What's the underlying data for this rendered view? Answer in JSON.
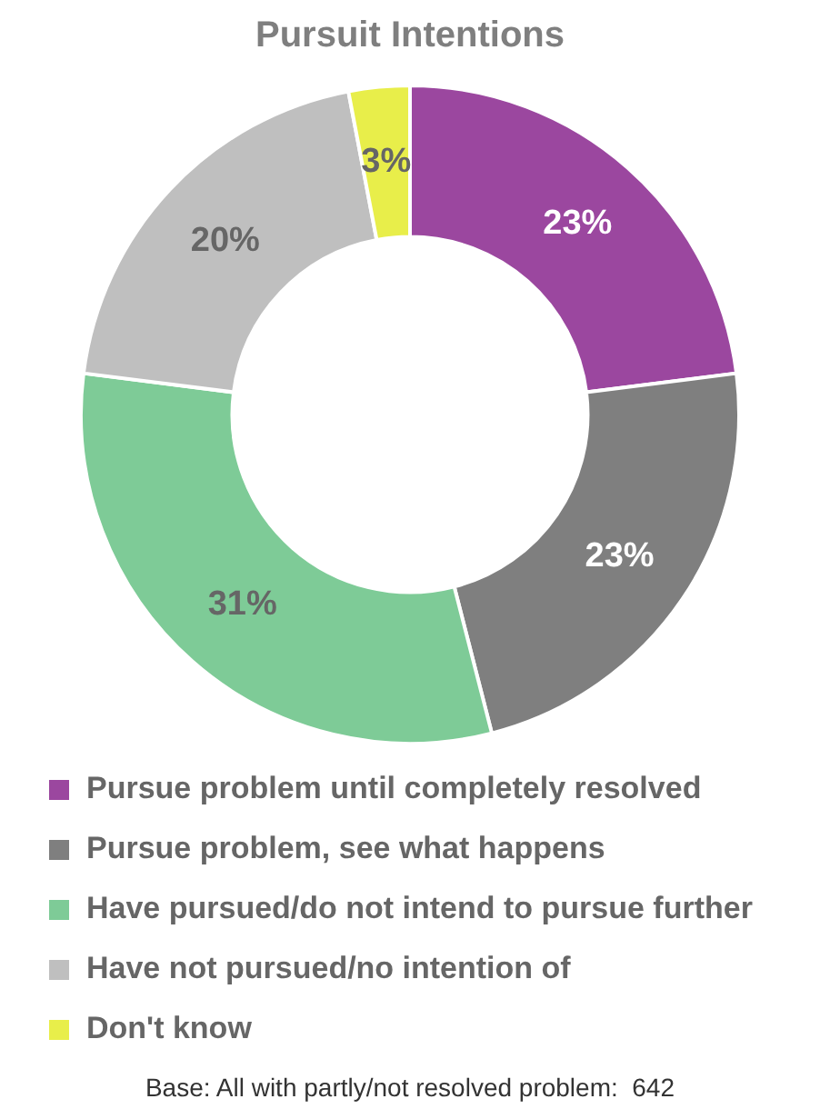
{
  "chart_data": {
    "type": "donut",
    "title": "Pursuit Intentions",
    "categories": [
      "Pursue problem until completely resolved",
      "Pursue problem, see what happens",
      "Have pursued/do not intend to pursue further",
      "Have not pursued/no intention of",
      "Don't know"
    ],
    "values": [
      23,
      23,
      31,
      20,
      3
    ],
    "colors": [
      "#9b479f",
      "#7f7f7f",
      "#7ecb97",
      "#bfbfbf",
      "#e8ee4a"
    ],
    "value_labels": [
      "23%",
      "23%",
      "31%",
      "20%",
      "3%"
    ],
    "legend": "bottom",
    "annotations": [
      "Base: All with partly/not resolved problem:  642"
    ]
  }
}
